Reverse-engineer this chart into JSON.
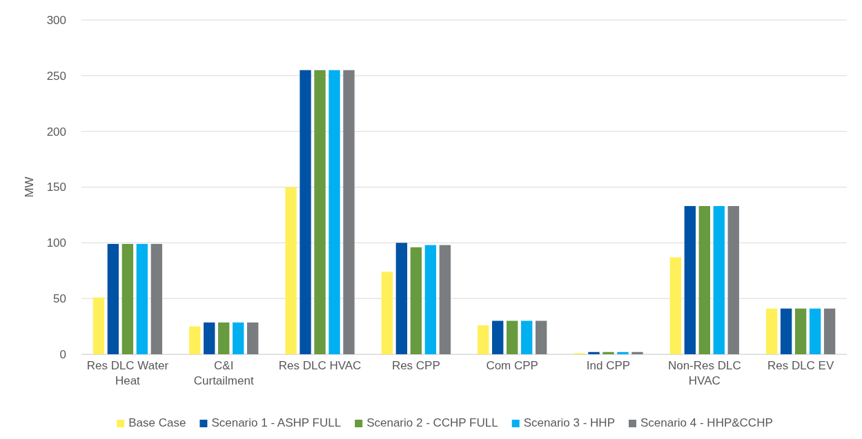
{
  "chart_data": {
    "type": "bar",
    "ylabel": "MW",
    "categories": [
      "Res DLC Water Heat",
      "C&I Curtailment",
      "Res DLC HVAC",
      "Res CPP",
      "Com CPP",
      "Ind CPP",
      "Non-Res DLC HVAC",
      "Res DLC EV"
    ],
    "series": [
      {
        "name": "Base Case",
        "color": "#fff05a",
        "values": [
          51,
          25,
          150,
          74,
          26,
          1,
          87,
          41
        ]
      },
      {
        "name": "Scenario 1 - ASHP FULL",
        "color": "#0052a5",
        "values": [
          99,
          28.5,
          255,
          100,
          30,
          2,
          133,
          41
        ]
      },
      {
        "name": "Scenario 2 - CCHP FULL",
        "color": "#689a3f",
        "values": [
          99,
          28.5,
          255,
          96,
          30,
          2,
          133,
          41
        ]
      },
      {
        "name": "Scenario 3 - HHP",
        "color": "#00b0f0",
        "values": [
          99,
          28.5,
          255,
          98,
          30,
          2,
          133,
          41
        ]
      },
      {
        "name": "Scenario 4 - HHP&CCHP",
        "color": "#797d80",
        "values": [
          99,
          28.5,
          255,
          98,
          30,
          2,
          133,
          41
        ]
      }
    ],
    "ylim": [
      0,
      300
    ],
    "yticks": [
      0,
      50,
      100,
      150,
      200,
      250,
      300
    ],
    "grid": "y",
    "legend": "bottom"
  }
}
